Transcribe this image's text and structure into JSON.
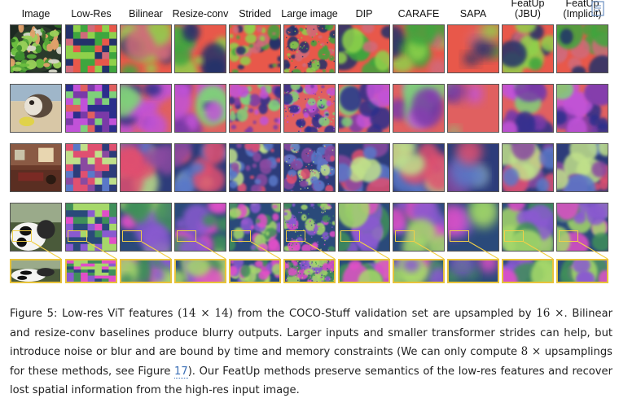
{
  "columns": [
    {
      "key": "image",
      "lines": [
        "Image"
      ]
    },
    {
      "key": "lowres",
      "lines": [
        "Low-Res"
      ]
    },
    {
      "key": "bilinear",
      "lines": [
        "Bilinear"
      ]
    },
    {
      "key": "resizeconv",
      "lines": [
        "Resize-conv"
      ]
    },
    {
      "key": "strided",
      "lines": [
        "Strided"
      ]
    },
    {
      "key": "large",
      "lines": [
        "Large image"
      ]
    },
    {
      "key": "dip",
      "lines": [
        "DIP"
      ]
    },
    {
      "key": "carafe",
      "lines": [
        "CARAFE"
      ]
    },
    {
      "key": "sapa",
      "lines": [
        "SAPA"
      ]
    },
    {
      "key": "jbu",
      "lines": [
        "FeatUp",
        "(JBU)"
      ]
    },
    {
      "key": "implicit",
      "lines": [
        "FeatUp",
        "(Implicit)"
      ]
    }
  ],
  "rows": [
    {
      "scene": "broccoli-bowl",
      "palette": [
        "#e8584a",
        "#23326a",
        "#3ea63e",
        "#8fd14b",
        "#d06a7a"
      ]
    },
    {
      "scene": "dog-beach",
      "palette": [
        "#e06060",
        "#2b2e8c",
        "#7a3aa8",
        "#c152d8",
        "#7fd07a"
      ]
    },
    {
      "scene": "living-room",
      "palette": [
        "#2d3c7a",
        "#e05070",
        "#c0e08a",
        "#5a78c8",
        "#8a4aa0"
      ]
    },
    {
      "scene": "panda-plush",
      "palette": [
        "#2a4a7a",
        "#3f8f5a",
        "#e14fc8",
        "#8a5ad0",
        "#a6d86a"
      ]
    }
  ],
  "caption": {
    "label": "Figure 5:",
    "t1": "Low-res ViT features",
    "m1": "(14 × 14)",
    "t2": "from the COCO-Stuff validation set are upsampled by",
    "m2": "16 ×",
    "t3": ". Bilinear and resize-conv baselines produce blurry outputs. Larger inputs and smaller transformer strides can help, but introduce noise or blur and are bound by time and memory constraints (We can only compute",
    "m3": "8 ×",
    "t4": "upsamplings for these methods, see Figure",
    "ref": "17",
    "t5": "). Our FeatUp methods preserve semantics of the low-res features and recover lost spatial information from the high-res input image."
  },
  "corner_icon": "page-ref-icon"
}
